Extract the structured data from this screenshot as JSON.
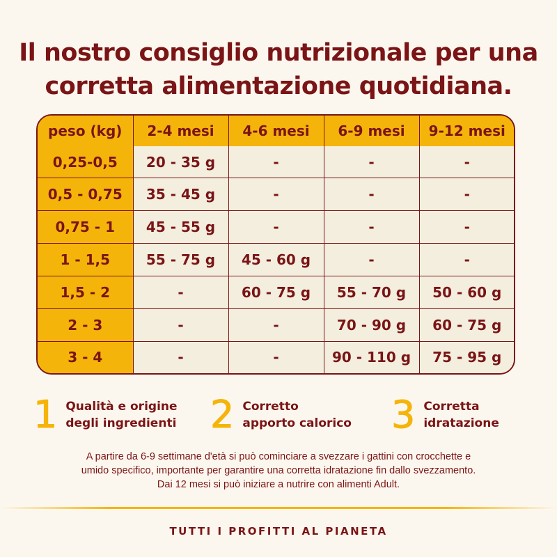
{
  "title": {
    "line1": "Il nostro consiglio nutrizionale per una",
    "line2": "corretta alimentazione quotidiana."
  },
  "table": {
    "headers": [
      "peso (kg)",
      "2-4 mesi",
      "4-6 mesi",
      "6-9 mesi",
      "9-12 mesi"
    ],
    "rows": [
      [
        "0,25-0,5",
        "20 - 35 g",
        "-",
        "-",
        "-"
      ],
      [
        "0,5 - 0,75",
        "35 - 45 g",
        "-",
        "-",
        "-"
      ],
      [
        "0,75 - 1",
        "45 - 55 g",
        "-",
        "-",
        "-"
      ],
      [
        "1 - 1,5",
        "55 - 75 g",
        "45 - 60 g",
        "-",
        "-"
      ],
      [
        "1,5 - 2",
        "-",
        "60 - 75 g",
        "55 - 70 g",
        "50 - 60 g"
      ],
      [
        "2 - 3",
        "-",
        "-",
        "70 - 90 g",
        "60 - 75 g"
      ],
      [
        "3 - 4",
        "-",
        "-",
        "90 - 110 g",
        "75 - 95 g"
      ]
    ]
  },
  "features": [
    {
      "number": "1",
      "line1": "Qualità e origine",
      "line2": "degli ingredienti"
    },
    {
      "number": "2",
      "line1": "Corretto",
      "line2": "apporto calorico"
    },
    {
      "number": "3",
      "line1": "Corretta",
      "line2": "idratazione"
    }
  ],
  "note": {
    "line1": "A partire da 6-9 settimane d'età si può cominciare a svezzare i gattini con crocchette e",
    "line2": "umido specifico, importante per garantire una corretta idratazione fin dallo svezzamento.",
    "line3": "Dai 12 mesi si può iniziare a nutrire con alimenti Adult."
  },
  "footer": "TUTTI I PROFITTI AL PIANETA",
  "colors": {
    "accent": "#f5b40a",
    "text": "#7a1416",
    "background": "#fcf7ee",
    "cell": "#f3eede"
  }
}
